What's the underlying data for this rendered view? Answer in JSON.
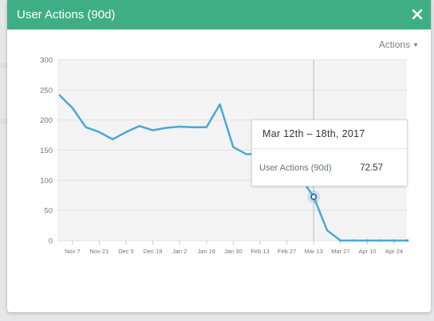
{
  "modal": {
    "title": "User Actions (90d)",
    "close_icon": "close-icon",
    "actions_label": "Actions",
    "actions_icon": "caret-down-icon",
    "accent_color": "#3fae86"
  },
  "tooltip": {
    "header": "Mar 12th – 18th, 2017",
    "series_label": "User Actions (90d)",
    "value": "72.57"
  },
  "chart_data": {
    "type": "line",
    "line_color": "#4aa8d8",
    "ylim": [
      0,
      300
    ],
    "yticks": [
      "0",
      "50",
      "100",
      "150",
      "200",
      "250",
      "300"
    ],
    "xticks": [
      "Nov 7",
      "Nov 21",
      "Dec 5",
      "Dec 19",
      "Jan 2",
      "Jan 16",
      "Jan 30",
      "Feb 13",
      "Feb 27",
      "Mar 13",
      "Mar 27",
      "Apr 10",
      "Apr 24"
    ],
    "x": [
      "Oct 31",
      "Nov 7",
      "Nov 14",
      "Nov 21",
      "Nov 28",
      "Dec 5",
      "Dec 12",
      "Dec 19",
      "Dec 26",
      "Jan 2",
      "Jan 9",
      "Jan 16",
      "Jan 23",
      "Jan 30",
      "Feb 6",
      "Feb 13",
      "Feb 20",
      "Feb 27",
      "Mar 6",
      "Mar 13",
      "Mar 20",
      "Mar 27",
      "Apr 3",
      "Apr 10",
      "Apr 17",
      "Apr 24",
      "May 1"
    ],
    "values": [
      242,
      220,
      188,
      180,
      168,
      180,
      190,
      183,
      187,
      189,
      188,
      188,
      226,
      155,
      143,
      145,
      135,
      120,
      105,
      72.57,
      17,
      0,
      0,
      0,
      0,
      0,
      0
    ],
    "highlight_index": 19,
    "grid": true
  }
}
